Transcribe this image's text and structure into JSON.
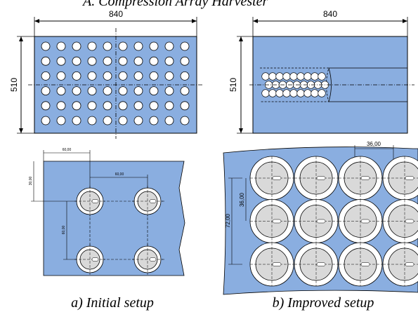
{
  "title_partial": "A. Compression Array Harvester",
  "panel_a": {
    "overall_width": "840",
    "overall_height": "510",
    "detail_dim_edge": "60,00",
    "detail_dim_pitch": "60,00",
    "detail_dim_top": "30,00",
    "detail_dim_vertical": "60,00",
    "caption": "a) Initial setup"
  },
  "panel_b": {
    "overall_width": "840",
    "overall_height": "510",
    "detail_dim_pitch": "36,00",
    "detail_dim_row": "36,00",
    "detail_dim_total": "72,00",
    "caption": "b) Improved setup"
  },
  "colors": {
    "plate": "#8aaee0",
    "hole_fill": "#ffffff",
    "cell_fill": "#d9d9d9",
    "line": "#000000"
  }
}
